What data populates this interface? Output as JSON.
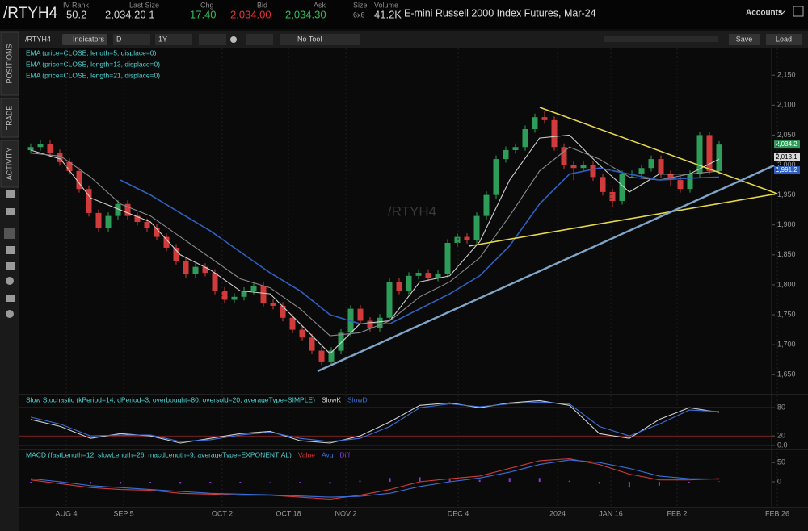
{
  "header": {
    "symbol": "/RTYH4",
    "fields": [
      {
        "label": "IV Rank",
        "value": "50.2"
      },
      {
        "label": "Last Size",
        "value": "2,034.20 1"
      },
      {
        "label": "Chg",
        "value": "17.40"
      },
      {
        "label": "Bid",
        "value": "2,034.00"
      },
      {
        "label": "Ask",
        "value": "2,034.30"
      },
      {
        "label": "Size",
        "value": "6x6"
      },
      {
        "label": "Volume",
        "value": "41.2K"
      }
    ],
    "description": "E-mini Russell 2000 Index Futures, Mar-24",
    "accounts": "Accounts"
  },
  "toolbar": {
    "symbol": "/RTYH4",
    "indicators": "Indicators",
    "period": "D",
    "range": "1Y",
    "tool": "No Tool",
    "save": "Save",
    "load": "Load"
  },
  "sidebar": [
    "POSITIONS",
    "TRADE",
    "ACTIVITY"
  ],
  "chart_data": [
    {
      "type": "candlestick",
      "title": "/RTYH4",
      "up_color": "#2e9d59",
      "down_color": "#d23b3b",
      "ylim": [
        1618,
        2219
      ],
      "yticks": [
        {
          "value": 2150,
          "label": "2,150"
        },
        {
          "value": 2100,
          "label": "2,100"
        },
        {
          "value": 2050,
          "label": "2,050"
        },
        {
          "value": 2000,
          "label": "2,000"
        },
        {
          "value": 1950,
          "label": "1,950"
        },
        {
          "value": 1900,
          "label": "1,900"
        },
        {
          "value": 1850,
          "label": "1,850"
        },
        {
          "value": 1800,
          "label": "1,800"
        },
        {
          "value": 1750,
          "label": "1,750"
        },
        {
          "value": 1700,
          "label": "1,700"
        },
        {
          "value": 1650,
          "label": "1,650"
        }
      ],
      "xtick_labels": [
        "AUG 4",
        "SEP 5",
        "OCT 2",
        "OCT 18",
        "NOV 2",
        "DEC 4",
        "2024",
        "JAN 16",
        "FEB 2",
        "FEB 26"
      ],
      "price_labels": [
        {
          "value": 2034.2,
          "label": "2,034.2",
          "color": "#2e9d59"
        },
        {
          "value": 2013.1,
          "label": "2,013.1",
          "color": "#d8d8d8"
        },
        {
          "value": 1991.2,
          "label": "1,991.2",
          "color": "#2f5fc0"
        }
      ],
      "ohlc": [
        [
          2025,
          2036,
          2019,
          2030
        ],
        [
          2030,
          2041,
          2024,
          2035
        ],
        [
          2035,
          2041,
          2014,
          2020
        ],
        [
          2020,
          2026,
          1999,
          2005
        ],
        [
          2005,
          2011,
          1984,
          1990
        ],
        [
          1990,
          1996,
          1954,
          1960
        ],
        [
          1960,
          1966,
          1914,
          1920
        ],
        [
          1920,
          1926,
          1889,
          1895
        ],
        [
          1895,
          1921,
          1889,
          1915
        ],
        [
          1915,
          1941,
          1909,
          1935
        ],
        [
          1935,
          1941,
          1909,
          1915
        ],
        [
          1915,
          1921,
          1899,
          1905
        ],
        [
          1905,
          1911,
          1889,
          1895
        ],
        [
          1895,
          1901,
          1874,
          1880
        ],
        [
          1880,
          1886,
          1856,
          1862
        ],
        [
          1862,
          1868,
          1834,
          1840
        ],
        [
          1840,
          1846,
          1812,
          1818
        ],
        [
          1818,
          1836,
          1812,
          1830
        ],
        [
          1830,
          1836,
          1814,
          1820
        ],
        [
          1820,
          1826,
          1784,
          1790
        ],
        [
          1790,
          1796,
          1769,
          1775
        ],
        [
          1775,
          1786,
          1769,
          1780
        ],
        [
          1780,
          1796,
          1774,
          1790
        ],
        [
          1790,
          1804,
          1784,
          1798
        ],
        [
          1798,
          1804,
          1764,
          1770
        ],
        [
          1770,
          1776,
          1759,
          1765
        ],
        [
          1765,
          1771,
          1739,
          1745
        ],
        [
          1745,
          1751,
          1719,
          1725
        ],
        [
          1725,
          1731,
          1706,
          1712
        ],
        [
          1712,
          1718,
          1684,
          1690
        ],
        [
          1690,
          1696,
          1666,
          1672
        ],
        [
          1672,
          1696,
          1666,
          1690
        ],
        [
          1690,
          1726,
          1684,
          1720
        ],
        [
          1720,
          1766,
          1714,
          1760
        ],
        [
          1760,
          1766,
          1734,
          1740
        ],
        [
          1740,
          1746,
          1722,
          1728
        ],
        [
          1728,
          1751,
          1722,
          1745
        ],
        [
          1745,
          1811,
          1739,
          1805
        ],
        [
          1805,
          1811,
          1784,
          1790
        ],
        [
          1790,
          1821,
          1784,
          1815
        ],
        [
          1815,
          1826,
          1809,
          1820
        ],
        [
          1820,
          1826,
          1806,
          1812
        ],
        [
          1812,
          1824,
          1806,
          1818
        ],
        [
          1818,
          1876,
          1812,
          1870
        ],
        [
          1870,
          1886,
          1864,
          1880
        ],
        [
          1880,
          1886,
          1869,
          1875
        ],
        [
          1875,
          1921,
          1869,
          1915
        ],
        [
          1915,
          1956,
          1909,
          1950
        ],
        [
          1950,
          2016,
          1944,
          2010
        ],
        [
          2010,
          2031,
          2004,
          2025
        ],
        [
          2025,
          2036,
          2019,
          2030
        ],
        [
          2030,
          2066,
          2024,
          2060
        ],
        [
          2060,
          2086,
          2054,
          2080
        ],
        [
          2080,
          2090,
          2069,
          2075
        ],
        [
          2075,
          2081,
          2024,
          2030
        ],
        [
          2030,
          2036,
          1994,
          2000
        ],
        [
          2000,
          2006,
          1975,
          1995
        ],
        [
          1995,
          2006,
          1989,
          2000
        ],
        [
          2000,
          2006,
          1974,
          1980
        ],
        [
          1980,
          1986,
          1949,
          1955
        ],
        [
          1955,
          1961,
          1930,
          1940
        ],
        [
          1940,
          1991,
          1934,
          1985
        ],
        [
          1985,
          1991,
          1979,
          1985
        ],
        [
          1985,
          2001,
          1979,
          1995
        ],
        [
          1995,
          2016,
          1989,
          2010
        ],
        [
          2010,
          2016,
          1979,
          1985
        ],
        [
          1985,
          1991,
          1965,
          1975
        ],
        [
          1975,
          1981,
          1954,
          1960
        ],
        [
          1960,
          1991,
          1954,
          1985
        ],
        [
          1985,
          2056,
          1979,
          2050
        ],
        [
          2050,
          2056,
          1984,
          1990
        ],
        [
          1990,
          2040,
          1984,
          2034.2
        ]
      ],
      "series": [
        {
          "name": "EMA (price=CLOSE, length=5, displace=0)",
          "color": "#d0d0d0",
          "values": [
            2025,
            2010,
            1945,
            1925,
            1905,
            1850,
            1825,
            1790,
            1785,
            1735,
            1685,
            1735,
            1740,
            1805,
            1815,
            1872,
            1975,
            2045,
            2050,
            2000,
            1955,
            1985,
            1985,
            2010
          ]
        },
        {
          "name": "EMA (price=CLOSE, length=13, displace=0)",
          "color": "#8a8a8a",
          "values": [
            2020,
            2015,
            1980,
            1935,
            1915,
            1880,
            1845,
            1810,
            1795,
            1760,
            1715,
            1720,
            1740,
            1780,
            1805,
            1845,
            1915,
            1990,
            2030,
            2010,
            1980,
            1975,
            1985,
            1990
          ]
        },
        {
          "name": "EMA (price=CLOSE, length=21, displace=0)",
          "color": "#2f5fc0",
          "values": [
            null,
            null,
            null,
            1975,
            1950,
            1920,
            1890,
            1855,
            1820,
            1790,
            1750,
            1735,
            1735,
            1760,
            1785,
            1815,
            1865,
            1935,
            1985,
            1995,
            1985,
            1975,
            1978,
            1980
          ]
        }
      ]
    },
    {
      "type": "line",
      "title": "Slow Stochastic (kPeriod=14, dPeriod=3, overbought=80, oversold=20, averageType=SIMPLE)",
      "ylim": [
        -7,
        106
      ],
      "yticks": [
        {
          "value": 0,
          "label": "0.0"
        },
        20,
        80
      ],
      "level_color": "#a02828",
      "series": [
        {
          "name": "SlowK",
          "color": "#d0d0d0",
          "values": [
            55,
            40,
            15,
            25,
            20,
            5,
            15,
            25,
            30,
            10,
            5,
            20,
            50,
            85,
            90,
            80,
            90,
            95,
            85,
            25,
            15,
            55,
            80,
            70
          ]
        },
        {
          "name": "SlowD",
          "color": "#3a6fd8",
          "values": [
            60,
            45,
            20,
            22,
            22,
            8,
            12,
            22,
            28,
            15,
            8,
            15,
            40,
            80,
            88,
            82,
            88,
            92,
            88,
            40,
            20,
            45,
            75,
            72
          ]
        }
      ]
    },
    {
      "type": "line",
      "title": "MACD (fastLength=12, slowLength=26, macdLength=9, averageType=EXPONENTIAL)",
      "ylim": [
        -65,
        82
      ],
      "yticks": [
        0,
        50
      ],
      "series": [
        {
          "name": "Value",
          "color": "#d23b3b",
          "values": [
            5,
            -5,
            -15,
            -20,
            -22,
            -30,
            -32,
            -35,
            -35,
            -40,
            -45,
            -35,
            -20,
            0,
            8,
            15,
            35,
            55,
            60,
            45,
            20,
            5,
            5,
            8
          ]
        },
        {
          "name": "Avg",
          "color": "#3a6fd8",
          "values": [
            8,
            0,
            -10,
            -15,
            -20,
            -25,
            -30,
            -32,
            -34,
            -37,
            -40,
            -38,
            -30,
            -12,
            0,
            10,
            25,
            45,
            57,
            50,
            35,
            15,
            8,
            7
          ]
        },
        {
          "name": "Diff",
          "color": "#8a3ad8",
          "style": "histogram",
          "values": [
            -3,
            -5,
            -5,
            -5,
            -2,
            -5,
            -2,
            -3,
            -1,
            -3,
            -5,
            3,
            10,
            12,
            8,
            5,
            10,
            10,
            3,
            -5,
            -15,
            -10,
            -3,
            1
          ]
        }
      ]
    }
  ]
}
